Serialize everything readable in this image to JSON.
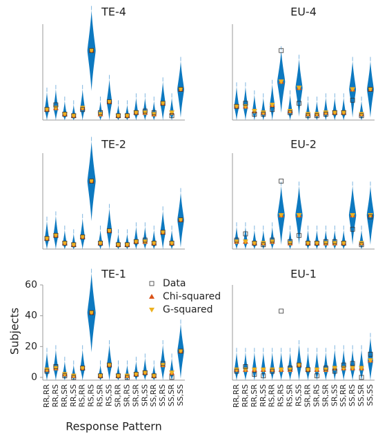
{
  "chart_data": [
    {
      "type": "violin",
      "title": "TE-4",
      "ylim": [
        0,
        60
      ],
      "series": [
        {
          "values": [
            5,
            8,
            2,
            1,
            5,
            43,
            3,
            10,
            1,
            1,
            3,
            4,
            3,
            9,
            1,
            18
          ]
        },
        {
          "color": "#D95319",
          "values": [
            5,
            6,
            2,
            1,
            6,
            43,
            2,
            10,
            1,
            1,
            3,
            3,
            2,
            9,
            3,
            18
          ]
        },
        {
          "color": "#EDB120",
          "values": [
            5,
            6,
            2,
            1,
            6,
            43,
            2,
            10,
            1,
            1,
            3,
            3,
            2,
            9,
            3,
            18
          ]
        }
      ]
    },
    {
      "type": "violin",
      "title": "EU-4",
      "ylim": [
        0,
        60
      ],
      "series": [
        {
          "values": [
            7,
            9,
            2,
            2,
            5,
            43,
            3,
            9,
            1,
            1,
            2,
            3,
            3,
            11,
            1,
            18
          ]
        },
        {
          "color": "#D95319",
          "values": [
            7,
            7,
            4,
            3,
            8,
            23,
            4,
            19,
            2,
            2,
            3,
            3,
            3,
            18,
            2,
            18
          ]
        },
        {
          "color": "#EDB120",
          "values": [
            7,
            7,
            4,
            3,
            8,
            23,
            4,
            19,
            2,
            2,
            3,
            3,
            3,
            18,
            2,
            18
          ]
        }
      ]
    },
    {
      "type": "violin",
      "title": "TE-2",
      "ylim": [
        0,
        60
      ],
      "series": [
        {
          "values": [
            5,
            7,
            2,
            1,
            6,
            42,
            2,
            10,
            1,
            1,
            3,
            4,
            2,
            9,
            2,
            17
          ]
        },
        {
          "color": "#D95319",
          "values": [
            5,
            7,
            2,
            1,
            6,
            42,
            2,
            10,
            1,
            1,
            3,
            3,
            2,
            9,
            2,
            17
          ]
        },
        {
          "color": "#EDB120",
          "values": [
            5,
            7,
            2,
            1,
            6,
            42,
            2,
            10,
            1,
            1,
            3,
            3,
            2,
            9,
            2,
            17
          ]
        }
      ]
    },
    {
      "type": "violin",
      "title": "EU-2",
      "ylim": [
        0,
        60
      ],
      "series": [
        {
          "values": [
            4,
            8,
            2,
            1,
            4,
            42,
            3,
            7,
            2,
            2,
            3,
            3,
            2,
            11,
            1,
            19
          ]
        },
        {
          "color": "#D95319",
          "values": [
            3,
            3,
            2,
            2,
            3,
            20,
            2,
            20,
            2,
            2,
            2,
            2,
            2,
            20,
            2,
            20
          ]
        },
        {
          "color": "#EDB120",
          "values": [
            3,
            3,
            2,
            2,
            3,
            20,
            2,
            20,
            2,
            2,
            2,
            2,
            2,
            20,
            2,
            20
          ]
        }
      ]
    },
    {
      "type": "violin",
      "title": "TE-1",
      "ylim": [
        0,
        60
      ],
      "yticks": [
        0,
        20,
        40,
        60
      ],
      "ylabel": "Subjects",
      "xlabel": "Response Pattern",
      "categories": [
        "RR,RR",
        "RR,RS",
        "RR,SR",
        "RR,SS",
        "RS,RR",
        "RS,RS",
        "RS,SR",
        "RS,SS",
        "SR,RR",
        "SR,RS",
        "SR,SR",
        "SR,SS",
        "SS,RR",
        "SS,RS",
        "SS,SR",
        "SS,SS"
      ],
      "series": [
        {
          "name": "Data",
          "values": [
            4,
            7,
            1,
            0,
            6,
            42,
            1,
            8,
            1,
            0,
            2,
            3,
            1,
            9,
            0,
            17
          ]
        },
        {
          "name": "Chi-squared",
          "color": "#D95319",
          "values": [
            5,
            6,
            2,
            1,
            6,
            42,
            1,
            8,
            1,
            1,
            2,
            3,
            1,
            8,
            3,
            17
          ]
        },
        {
          "name": "G-squared",
          "color": "#EDB120",
          "values": [
            5,
            6,
            2,
            1,
            6,
            42,
            1,
            8,
            1,
            1,
            2,
            3,
            1,
            8,
            3,
            17
          ]
        }
      ]
    },
    {
      "type": "violin",
      "title": "EU-1",
      "ylim": [
        0,
        60
      ],
      "categories": [
        "RR,RR",
        "RR,RS",
        "RR,SR",
        "RR,SS",
        "RS,RR",
        "RS,RS",
        "RS,SR",
        "RS,SS",
        "SR,RR",
        "SR,RS",
        "SR,SR",
        "SR,SS",
        "SS,RR",
        "SS,RS",
        "SS,SR",
        "SS,SS"
      ],
      "series": [
        {
          "values": [
            4,
            7,
            2,
            1,
            4,
            43,
            6,
            8,
            5,
            1,
            6,
            4,
            8,
            9,
            0,
            15
          ]
        },
        {
          "color": "#D95319",
          "values": [
            5,
            5,
            5,
            5,
            5,
            5,
            5,
            8,
            5,
            5,
            5,
            6,
            6,
            6,
            6,
            11
          ]
        },
        {
          "color": "#EDB120",
          "values": [
            5,
            5,
            5,
            5,
            5,
            5,
            5,
            8,
            5,
            5,
            5,
            6,
            6,
            6,
            6,
            11
          ]
        }
      ]
    }
  ]
}
